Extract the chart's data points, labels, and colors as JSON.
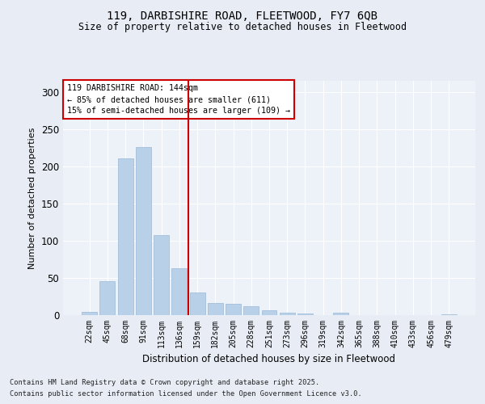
{
  "title_line1": "119, DARBISHIRE ROAD, FLEETWOOD, FY7 6QB",
  "title_line2": "Size of property relative to detached houses in Fleetwood",
  "xlabel": "Distribution of detached houses by size in Fleetwood",
  "ylabel": "Number of detached properties",
  "categories": [
    "22sqm",
    "45sqm",
    "68sqm",
    "91sqm",
    "113sqm",
    "136sqm",
    "159sqm",
    "182sqm",
    "205sqm",
    "228sqm",
    "251sqm",
    "273sqm",
    "296sqm",
    "319sqm",
    "342sqm",
    "365sqm",
    "388sqm",
    "410sqm",
    "433sqm",
    "456sqm",
    "479sqm"
  ],
  "values": [
    4,
    46,
    211,
    226,
    107,
    63,
    30,
    16,
    15,
    12,
    6,
    3,
    2,
    0,
    3,
    0,
    0,
    0,
    0,
    0,
    1
  ],
  "bar_color": "#b8d0e8",
  "bar_edge_color": "#9ab8d8",
  "vline_index": 5.5,
  "vline_color": "#cc0000",
  "annotation_title": "119 DARBISHIRE ROAD: 144sqm",
  "annotation_line2": "← 85% of detached houses are smaller (611)",
  "annotation_line3": "15% of semi-detached houses are larger (109) →",
  "annotation_box_facecolor": "#ffffff",
  "annotation_box_edgecolor": "#cc0000",
  "footnote1": "Contains HM Land Registry data © Crown copyright and database right 2025.",
  "footnote2": "Contains public sector information licensed under the Open Government Licence v3.0.",
  "bg_color": "#e8edf5",
  "plot_bg_color": "#edf1f8",
  "ylim": [
    0,
    315
  ],
  "yticks": [
    0,
    50,
    100,
    150,
    200,
    250,
    300
  ]
}
